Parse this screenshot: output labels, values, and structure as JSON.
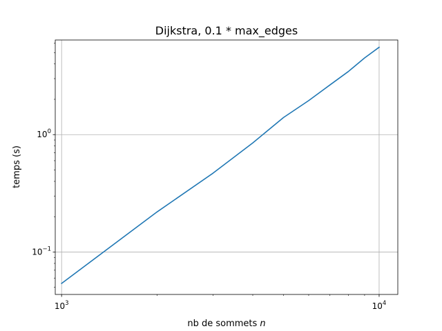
{
  "chart_data": {
    "type": "line",
    "title": "Dijkstra, 0.1 * max_edges",
    "xlabel_prefix": "nb de sommets ",
    "xlabel_var": "n",
    "ylabel": "temps (s)",
    "xscale": "log",
    "yscale": "log",
    "xlim": [
      955,
      11450
    ],
    "ylim": [
      0.0435,
      6.4
    ],
    "grid": true,
    "x_ticks": [
      {
        "value": 1000,
        "base": "10",
        "exp": "3"
      },
      {
        "value": 10000,
        "base": "10",
        "exp": "4"
      }
    ],
    "y_ticks": [
      {
        "value": 0.1,
        "base": "10",
        "exp": "−1"
      },
      {
        "value": 1,
        "base": "10",
        "exp": "0"
      }
    ],
    "x_minor_ticks": [
      2000,
      3000,
      4000,
      5000,
      6000,
      7000,
      8000,
      9000
    ],
    "y_minor_ticks": [
      0.05,
      0.06,
      0.07,
      0.08,
      0.09,
      0.2,
      0.3,
      0.4,
      0.5,
      0.6,
      0.7,
      0.8,
      0.9,
      2,
      3,
      4,
      5,
      6
    ],
    "series": [
      {
        "color": "#1f77b4",
        "x": [
          1000,
          2000,
          3000,
          4000,
          5000,
          6000,
          7000,
          8000,
          9000,
          10000
        ],
        "y": [
          0.054,
          0.22,
          0.47,
          0.85,
          1.4,
          1.95,
          2.65,
          3.45,
          4.5,
          5.55
        ]
      }
    ]
  }
}
